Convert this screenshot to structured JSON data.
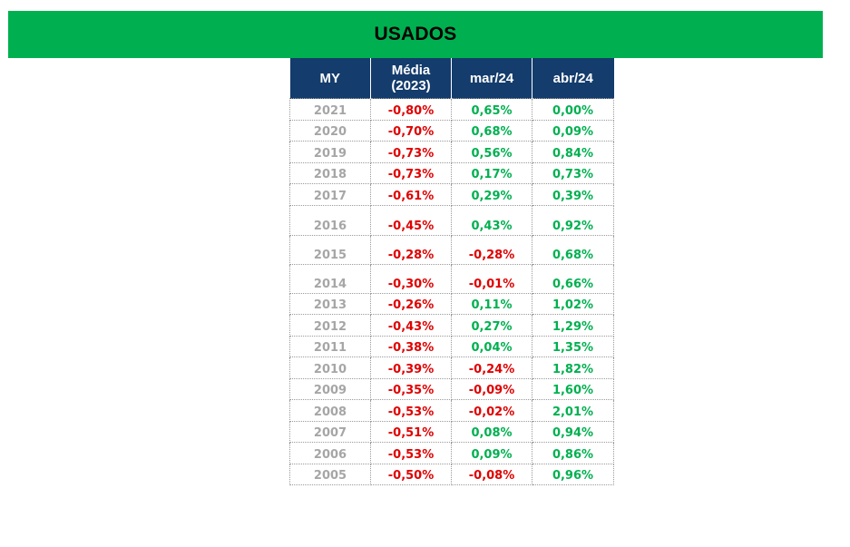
{
  "title": "USADOS",
  "colors": {
    "banner": "#00b050",
    "header": "#143c6c",
    "negative": "#e00000",
    "positive": "#00b050",
    "year_text": "#a6a6a6"
  },
  "table": {
    "headers": [
      "MY",
      "Média (2023)",
      "mar/24",
      "abr/24"
    ],
    "rows": [
      {
        "my": "2021",
        "media": "-0,80%",
        "mar": "0,65%",
        "abr": "0,00%"
      },
      {
        "my": "2020",
        "media": "-0,70%",
        "mar": "0,68%",
        "abr": "0,09%"
      },
      {
        "my": "2019",
        "media": "-0,73%",
        "mar": "0,56%",
        "abr": "0,84%"
      },
      {
        "my": "2018",
        "media": "-0,73%",
        "mar": "0,17%",
        "abr": "0,73%"
      },
      {
        "my": "2017",
        "media": "-0,61%",
        "mar": "0,29%",
        "abr": "0,39%"
      },
      {
        "my": "2016",
        "media": "-0,45%",
        "mar": "0,43%",
        "abr": "0,92%"
      },
      {
        "my": "2015",
        "media": "-0,28%",
        "mar": "-0,28%",
        "abr": "0,68%"
      },
      {
        "my": "2014",
        "media": "-0,30%",
        "mar": "-0,01%",
        "abr": "0,66%"
      },
      {
        "my": "2013",
        "media": "-0,26%",
        "mar": "0,11%",
        "abr": "1,02%"
      },
      {
        "my": "2012",
        "media": "-0,43%",
        "mar": "0,27%",
        "abr": "1,29%"
      },
      {
        "my": "2011",
        "media": "-0,38%",
        "mar": "0,04%",
        "abr": "1,35%"
      },
      {
        "my": "2010",
        "media": "-0,39%",
        "mar": "-0,24%",
        "abr": "1,82%"
      },
      {
        "my": "2009",
        "media": "-0,35%",
        "mar": "-0,09%",
        "abr": "1,60%"
      },
      {
        "my": "2008",
        "media": "-0,53%",
        "mar": "-0,02%",
        "abr": "2,01%"
      },
      {
        "my": "2007",
        "media": "-0,51%",
        "mar": "0,08%",
        "abr": "0,94%"
      },
      {
        "my": "2006",
        "media": "-0,53%",
        "mar": "0,09%",
        "abr": "0,86%"
      },
      {
        "my": "2005",
        "media": "-0,50%",
        "mar": "-0,08%",
        "abr": "0,96%"
      }
    ]
  }
}
